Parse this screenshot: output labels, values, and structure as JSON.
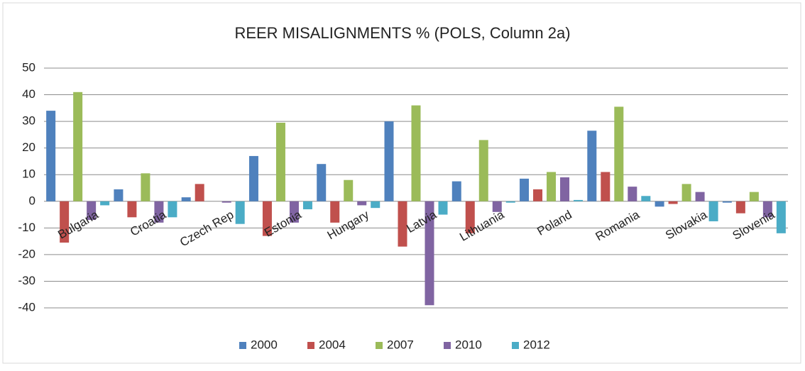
{
  "chart_data": {
    "type": "bar",
    "title": "REER MISALIGNMENTS % (POLS, Column 2a)",
    "categories": [
      "Bulgaria",
      "Croatia",
      "Czech Rep",
      "Estonia",
      "Hungary",
      "Latvia",
      "Lithuania",
      "Poland",
      "Romania",
      "Slovakia",
      "Slovenia"
    ],
    "series": [
      {
        "name": "2000",
        "color": "#4f81bd",
        "values": [
          34,
          4.5,
          1.5,
          17,
          14,
          30,
          7.5,
          8.5,
          26.5,
          -2,
          -0.5
        ]
      },
      {
        "name": "2004",
        "color": "#c0504d",
        "values": [
          -15.5,
          -6,
          6.5,
          -13,
          -8,
          -17,
          -12,
          4.5,
          11,
          -1,
          -4.5
        ]
      },
      {
        "name": "2007",
        "color": "#9bbb59",
        "values": [
          41,
          10.5,
          0,
          29.5,
          8,
          36,
          23,
          11,
          35.5,
          6.5,
          3.5
        ]
      },
      {
        "name": "2010",
        "color": "#8064a2",
        "values": [
          -7,
          -8,
          -0.5,
          -8,
          -1.5,
          -39,
          -4,
          9,
          5.5,
          3.5,
          -6
        ]
      },
      {
        "name": "2012",
        "color": "#4bacc6",
        "values": [
          -1.5,
          -6,
          -8.5,
          -3,
          -2.5,
          -5,
          -0.5,
          0.5,
          2,
          -7.5,
          -12
        ]
      }
    ],
    "ylim": [
      -40,
      50
    ],
    "yticks": [
      -40,
      -30,
      -20,
      -10,
      0,
      10,
      20,
      30,
      40,
      50
    ],
    "grid": true,
    "legend": "bottom"
  }
}
